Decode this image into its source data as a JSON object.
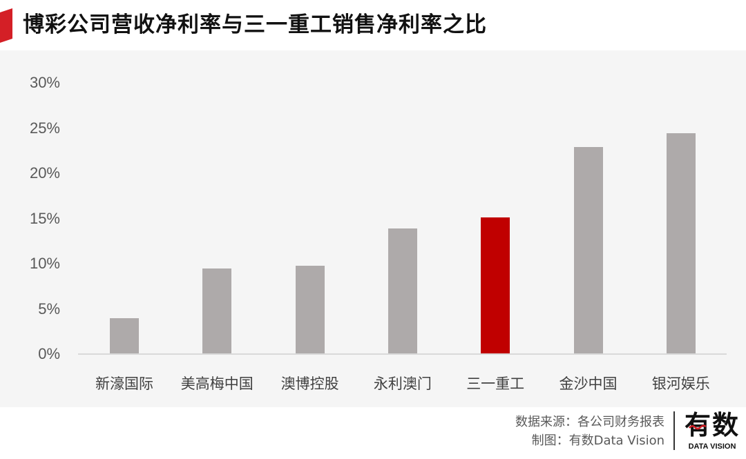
{
  "header": {
    "title": "博彩公司营收净利率与三一重工销售净利率之比",
    "marker_color": "#d41f26"
  },
  "chart_data": {
    "type": "bar",
    "title": "博彩公司营收净利率与三一重工销售净利率之比",
    "xlabel": "",
    "ylabel": "",
    "categories": [
      "新濠国际",
      "美高梅中国",
      "澳博控股",
      "永利澳门",
      "三一重工",
      "金沙中国",
      "银河娱乐"
    ],
    "values": [
      4.0,
      9.5,
      9.8,
      13.9,
      15.1,
      22.9,
      24.4
    ],
    "unit": "%",
    "ylim": [
      0,
      30
    ],
    "yticks": [
      "0%",
      "5%",
      "10%",
      "15%",
      "20%",
      "25%",
      "30%"
    ],
    "grid": false,
    "legend": null,
    "colors": {
      "default": "#aeaaaa",
      "highlight": "#c00000",
      "highlight_category": "三一重工"
    }
  },
  "footer": {
    "source": "数据来源：各公司财务报表",
    "credit": "制图：有数Data Vision",
    "logo_main": "有数",
    "logo_sub": "DATA VISION",
    "logo_accent": "#d41f26"
  }
}
